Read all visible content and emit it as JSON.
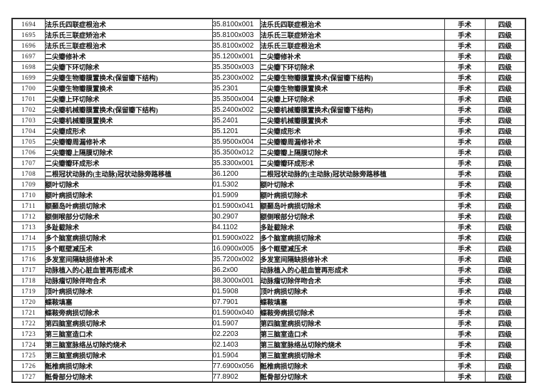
{
  "table": {
    "category_value": "手术",
    "level_value": "四级",
    "rows": [
      {
        "no": "1694",
        "name": "法乐氏四联症根治术",
        "code": "35.8100x001",
        "name2": "法乐氏四联症根治术",
        "category": "手术",
        "level": "四级"
      },
      {
        "no": "1695",
        "name": "法乐氏三联症矫治术",
        "code": "35.8100x003",
        "name2": "法乐氏三联症矫治术",
        "category": "手术",
        "level": "四级"
      },
      {
        "no": "1696",
        "name": "法乐氏三联症根治术",
        "code": "35.8100x002",
        "name2": "法乐氏三联症根治术",
        "category": "手术",
        "level": "四级"
      },
      {
        "no": "1697",
        "name": "二尖瓣修补术",
        "code": "35.1200x001",
        "name2": "二尖瓣修补术",
        "category": "手术",
        "level": "四级"
      },
      {
        "no": "1698",
        "name": "二尖瓣下环切除术",
        "code": "35.3500x003",
        "name2": "二尖瓣下环切除术",
        "category": "手术",
        "level": "四级"
      },
      {
        "no": "1699",
        "name": "二尖瓣生物瓣膜置换术(保留瓣下结构)",
        "code": "35.2300x002",
        "name2": "二尖瓣生物瓣膜置换术(保留瓣下结构)",
        "category": "手术",
        "level": "四级"
      },
      {
        "no": "1700",
        "name": "二尖瓣生物瓣膜置换术",
        "code": "35.2301",
        "name2": "二尖瓣生物瓣膜置换术",
        "category": "手术",
        "level": "四级"
      },
      {
        "no": "1701",
        "name": "二尖瓣上环切除术",
        "code": "35.3500x004",
        "name2": "二尖瓣上环切除术",
        "category": "手术",
        "level": "四级"
      },
      {
        "no": "1702",
        "name": "二尖瓣机械瓣膜置换术(保留瓣下结构)",
        "code": "35.2400x002",
        "name2": "二尖瓣机械瓣膜置换术(保留瓣下结构)",
        "category": "手术",
        "level": "四级"
      },
      {
        "no": "1703",
        "name": "二尖瓣机械瓣膜置换术",
        "code": "35.2401",
        "name2": "二尖瓣机械瓣膜置换术",
        "category": "手术",
        "level": "四级"
      },
      {
        "no": "1704",
        "name": "二尖瓣成形术",
        "code": "35.1201",
        "name2": "二尖瓣成形术",
        "category": "手术",
        "level": "四级"
      },
      {
        "no": "1705",
        "name": "二尖瓣瓣周漏修补术",
        "code": "35.9500x004",
        "name2": "二尖瓣瓣周漏修补术",
        "category": "手术",
        "level": "四级"
      },
      {
        "no": "1706",
        "name": "二尖瓣瓣上隔膜切除术",
        "code": "35.3500x012",
        "name2": "二尖瓣瓣上隔膜切除术",
        "category": "手术",
        "level": "四级"
      },
      {
        "no": "1707",
        "name": "二尖瓣瓣环成形术",
        "code": "35.3300x001",
        "name2": "二尖瓣瓣环成形术",
        "category": "手术",
        "level": "四级"
      },
      {
        "no": "1708",
        "name": "二根冠状动脉的(主动脉)冠状动脉旁路移植",
        "code": "36.1200",
        "name2": "二根冠状动脉的(主动脉)冠状动脉旁路移植",
        "category": "手术",
        "level": "四级"
      },
      {
        "no": "1709",
        "name": "额叶切除术",
        "code": "01.5302",
        "name2": "额叶切除术",
        "category": "手术",
        "level": "四级"
      },
      {
        "no": "1710",
        "name": "额叶病损切除术",
        "code": "01.5909",
        "name2": "额叶病损切除术",
        "category": "手术",
        "level": "四级"
      },
      {
        "no": "1711",
        "name": "额颞岛叶病损切除术",
        "code": "01.5900x041",
        "name2": "额颞岛叶病损切除术",
        "category": "手术",
        "level": "四级"
      },
      {
        "no": "1712",
        "name": "额侧喉部分切除术",
        "code": "30.2907",
        "name2": "额侧喉部分切除术",
        "category": "手术",
        "level": "四级"
      },
      {
        "no": "1713",
        "name": "多趾截除术",
        "code": "84.1102",
        "name2": "多趾截除术",
        "category": "手术",
        "level": "四级"
      },
      {
        "no": "1714",
        "name": "多个脑室病损切除术",
        "code": "01.5900x022",
        "name2": "多个脑室病损切除术",
        "category": "手术",
        "level": "四级"
      },
      {
        "no": "1715",
        "name": "多个眶壁减压术",
        "code": "16.0900x005",
        "name2": "多个眶壁减压术",
        "category": "手术",
        "level": "四级"
      },
      {
        "no": "1716",
        "name": "多发室间隔缺损修补术",
        "code": "35.7200x002",
        "name2": "多发室间隔缺损修补术",
        "category": "手术",
        "level": "四级"
      },
      {
        "no": "1717",
        "name": "动脉植入的心脏血管再形成术",
        "code": "36.2x00",
        "name2": "动脉植入的心脏血管再形成术",
        "category": "手术",
        "level": "四级"
      },
      {
        "no": "1718",
        "name": "动脉瘤切除伴吻合术",
        "code": "38.3000x001",
        "name2": "动脉瘤切除伴吻合术",
        "category": "手术",
        "level": "四级"
      },
      {
        "no": "1719",
        "name": "顶叶病损切除术",
        "code": "01.5908",
        "name2": "顶叶病损切除术",
        "category": "手术",
        "level": "四级"
      },
      {
        "no": "1720",
        "name": "蝶鞍填塞",
        "code": "07.7901",
        "name2": "蝶鞍填塞",
        "category": "手术",
        "level": "四级"
      },
      {
        "no": "1721",
        "name": "蝶鞍旁病损切除术",
        "code": "01.5900x040",
        "name2": "蝶鞍旁病损切除术",
        "category": "手术",
        "level": "四级"
      },
      {
        "no": "1722",
        "name": "第四脑室病损切除术",
        "code": "01.5907",
        "name2": "第四脑室病损切除术",
        "category": "手术",
        "level": "四级"
      },
      {
        "no": "1723",
        "name": "第三脑室造口术",
        "code": "02.2203",
        "name2": "第三脑室造口术",
        "category": "手术",
        "level": "四级"
      },
      {
        "no": "1724",
        "name": "第三脑室脉络丛切除灼烧术",
        "code": "02.1403",
        "name2": "第三脑室脉络丛切除灼烧术",
        "category": "手术",
        "level": "四级"
      },
      {
        "no": "1725",
        "name": "第三脑室病损切除术",
        "code": "01.5904",
        "name2": "第三脑室病损切除术",
        "category": "手术",
        "level": "四级"
      },
      {
        "no": "1726",
        "name": "骶椎病损切除术",
        "code": "77.6900x056",
        "name2": "骶椎病损切除术",
        "category": "手术",
        "level": "四级"
      },
      {
        "no": "1727",
        "name": "骶骨部分切除术",
        "code": "77.8902",
        "name2": "骶骨部分切除术",
        "category": "手术",
        "level": "四级"
      }
    ]
  }
}
